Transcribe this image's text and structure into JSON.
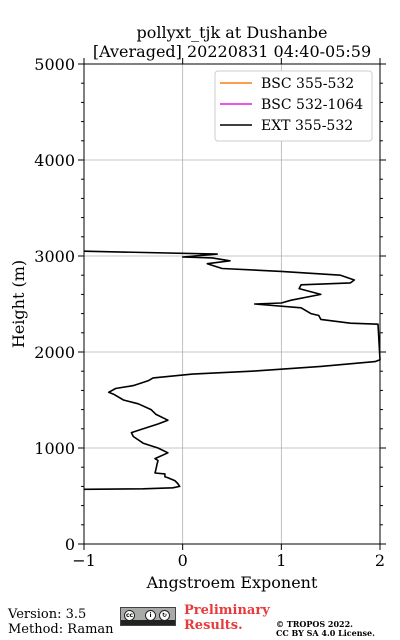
{
  "chart_data": {
    "type": "line",
    "title": "pollyxt_tjk at Dushanbe",
    "subtitle": "[Averaged] 20220831 04:40-05:59",
    "xlabel": "Angstroem Exponent",
    "ylabel": "Height (m)",
    "xlim": [
      -1,
      2
    ],
    "ylim": [
      0,
      5000
    ],
    "xticks": [
      "−1",
      "0",
      "1",
      "2"
    ],
    "yticks": [
      "0",
      "1000",
      "2000",
      "3000",
      "4000",
      "5000"
    ],
    "grid": true,
    "legend_position": "top-right",
    "series": [
      {
        "name": "BSC 355-532",
        "color": "#ff7f0e",
        "points": []
      },
      {
        "name": "BSC 532-1064",
        "color": "#e020e0",
        "points": []
      },
      {
        "name": "EXT 355-532",
        "color": "#000000",
        "points": [
          [
            -1.0,
            570
          ],
          [
            -0.4,
            575
          ],
          [
            -0.1,
            585
          ],
          [
            -0.03,
            600
          ],
          [
            -0.05,
            630
          ],
          [
            -0.08,
            660
          ],
          [
            -0.15,
            690
          ],
          [
            -0.18,
            700
          ],
          [
            -0.18,
            730
          ],
          [
            -0.28,
            740
          ],
          [
            -0.27,
            780
          ],
          [
            -0.26,
            830
          ],
          [
            -0.25,
            870
          ],
          [
            -0.28,
            890
          ],
          [
            -0.15,
            950
          ],
          [
            -0.25,
            1000
          ],
          [
            -0.4,
            1050
          ],
          [
            -0.5,
            1120
          ],
          [
            -0.52,
            1160
          ],
          [
            -0.4,
            1200
          ],
          [
            -0.25,
            1250
          ],
          [
            -0.15,
            1290
          ],
          [
            -0.27,
            1350
          ],
          [
            -0.32,
            1400
          ],
          [
            -0.45,
            1460
          ],
          [
            -0.6,
            1500
          ],
          [
            -0.7,
            1560
          ],
          [
            -0.75,
            1580
          ],
          [
            -0.68,
            1620
          ],
          [
            -0.5,
            1650
          ],
          [
            -0.35,
            1700
          ],
          [
            -0.3,
            1730
          ],
          [
            0.1,
            1770
          ],
          [
            0.7,
            1800
          ],
          [
            1.4,
            1850
          ],
          [
            1.95,
            1900
          ],
          [
            2.0,
            1920
          ],
          [
            1.98,
            2290
          ],
          [
            1.7,
            2300
          ],
          [
            1.4,
            2340
          ],
          [
            1.38,
            2380
          ],
          [
            1.3,
            2400
          ],
          [
            1.2,
            2460
          ],
          [
            0.73,
            2500
          ],
          [
            1.0,
            2510
          ],
          [
            1.1,
            2540
          ],
          [
            1.4,
            2600
          ],
          [
            1.18,
            2660
          ],
          [
            1.2,
            2700
          ],
          [
            1.7,
            2720
          ],
          [
            1.74,
            2750
          ],
          [
            1.6,
            2800
          ],
          [
            1.0,
            2840
          ],
          [
            0.4,
            2870
          ],
          [
            0.25,
            2920
          ],
          [
            0.48,
            2950
          ],
          [
            0.3,
            2980
          ],
          [
            0.0,
            2990
          ],
          [
            0.35,
            3020
          ],
          [
            -1.0,
            3050
          ]
        ]
      }
    ]
  },
  "footer": {
    "version": "Version: 3.5",
    "method": "Method: Raman",
    "preliminary_line1": "Preliminary",
    "preliminary_line2": "Results.",
    "copyright_line1": "© TROPOS 2022.",
    "copyright_line2": "CC BY SA 4.0 License.",
    "license_badge": "cc-by-sa-icon"
  }
}
